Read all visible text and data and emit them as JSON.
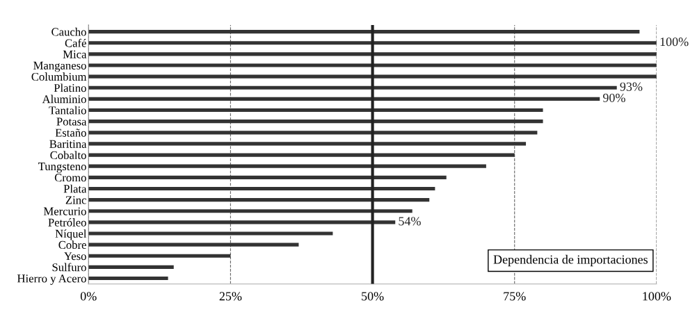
{
  "chart_data": {
    "type": "bar",
    "orientation": "horizontal",
    "categories": [
      "Caucho",
      "Café",
      "Mica",
      "Manganeso",
      "Columbium",
      "Platino",
      "Aluminio",
      "Tantalio",
      "Potasa",
      "Estaño",
      "Baritina",
      "Cobalto",
      "Tungsteno",
      "Cromo",
      "Plata",
      "Zinc",
      "Mercurio",
      "Petróleo",
      "Níquel",
      "Cobre",
      "Yeso",
      "Sulfuro",
      "Hierro y Acero"
    ],
    "values": [
      97,
      100,
      100,
      100,
      100,
      93,
      90,
      80,
      80,
      79,
      77,
      75,
      70,
      63,
      61,
      60,
      57,
      54,
      43,
      37,
      25,
      15,
      14
    ],
    "value_labels": [
      null,
      "100%",
      null,
      null,
      null,
      "93%",
      "90%",
      null,
      null,
      null,
      null,
      null,
      null,
      null,
      null,
      null,
      null,
      "54%",
      null,
      null,
      null,
      null,
      null
    ],
    "color": "#333333",
    "xlim": [
      0,
      100
    ],
    "xticks": [
      {
        "value": 0,
        "label": "0%"
      },
      {
        "value": 25,
        "label": "25%"
      },
      {
        "value": 50,
        "label": "50%"
      },
      {
        "value": 75,
        "label": "75%"
      },
      {
        "value": 100,
        "label": "100%"
      }
    ],
    "grid": "x",
    "ref_lines": [
      {
        "axis": "x",
        "value": 50,
        "color": "#222222"
      }
    ],
    "annotations": [
      "Dependencia de importaciones"
    ]
  }
}
